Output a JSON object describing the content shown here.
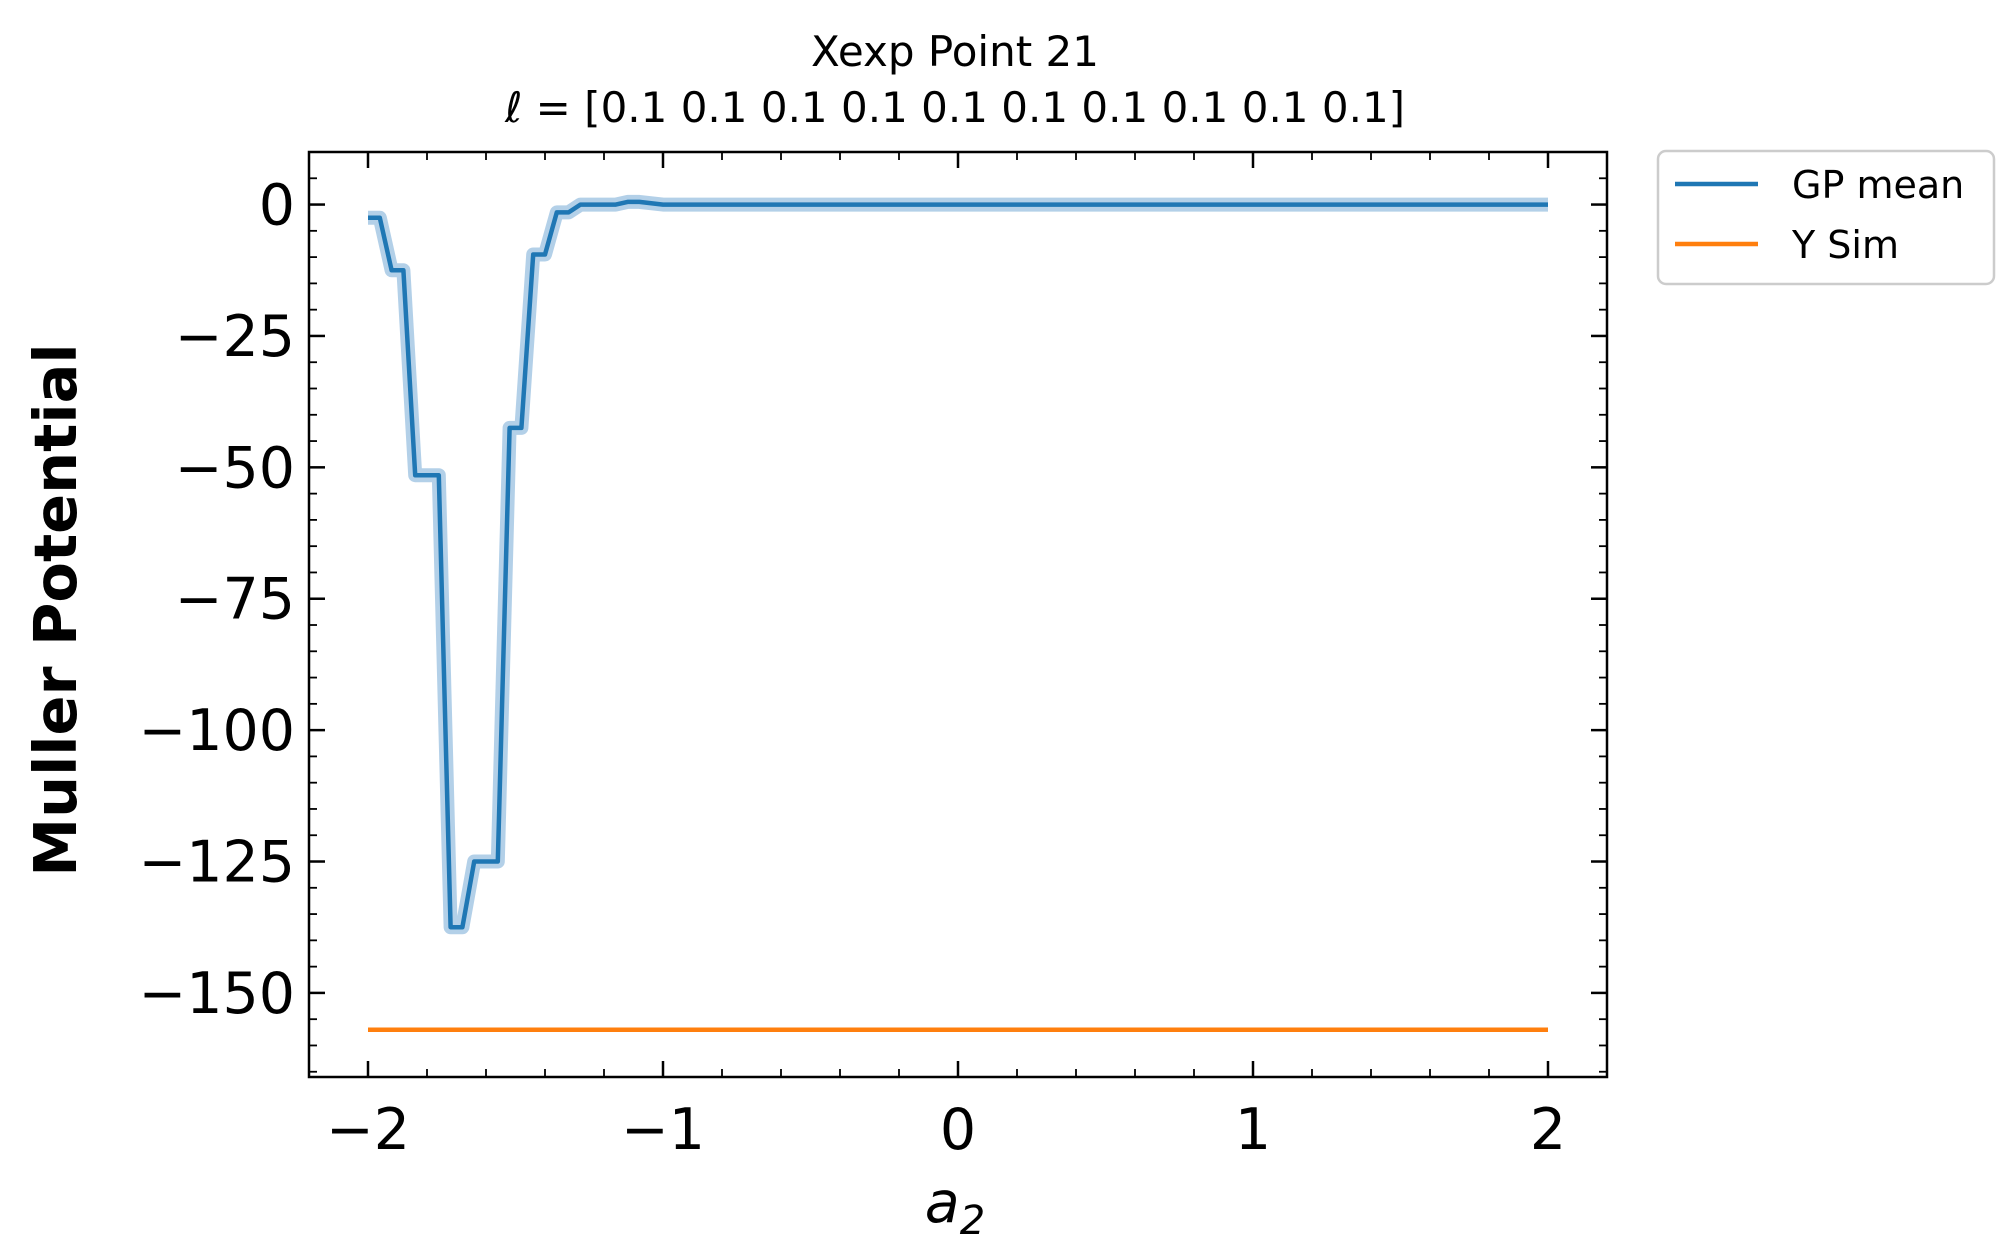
{
  "chart_data": {
    "type": "line",
    "title": "Xexp Point 21",
    "subtitle": "ℓ = [0.1 0.1 0.1 0.1 0.1 0.1 0.1 0.1 0.1 0.1]",
    "xlabel_base": "a",
    "xlabel_sub": "2",
    "ylabel": "Muller Potential",
    "xlim": [
      -2.2,
      2.2
    ],
    "ylim": [
      -166,
      10
    ],
    "xticks": [
      -2,
      -1,
      0,
      1,
      2
    ],
    "xtick_labels": [
      "−2",
      "−1",
      "0",
      "1",
      "2"
    ],
    "yticks": [
      0,
      -25,
      -50,
      -75,
      -100,
      -125,
      -150
    ],
    "ytick_labels": [
      "0",
      "−25",
      "−50",
      "−75",
      "−100",
      "−125",
      "−150"
    ],
    "grid": false,
    "legend_position": "outside-top-right",
    "series": [
      {
        "name": "GP mean",
        "color": "#1f77b4",
        "band_color": "#a6c8e4",
        "x": [
          -2.0,
          -1.96,
          -1.92,
          -1.88,
          -1.84,
          -1.76,
          -1.72,
          -1.68,
          -1.64,
          -1.56,
          -1.52,
          -1.48,
          -1.44,
          -1.4,
          -1.36,
          -1.32,
          -1.28,
          -1.24,
          -1.16,
          -1.12,
          -1.08,
          -1.0,
          2.0
        ],
        "y": [
          -2.5,
          -2.5,
          -12.5,
          -12.5,
          -51.5,
          -51.5,
          -137.5,
          -137.5,
          -125,
          -125,
          -42.5,
          -42.5,
          -9.5,
          -9.5,
          -1.5,
          -1.5,
          0,
          0,
          0,
          0.5,
          0.5,
          0,
          0
        ]
      },
      {
        "name": "Y Sim",
        "color": "#ff7f0e",
        "x": [
          -2.0,
          2.0
        ],
        "y": [
          -157,
          -157
        ]
      }
    ]
  }
}
